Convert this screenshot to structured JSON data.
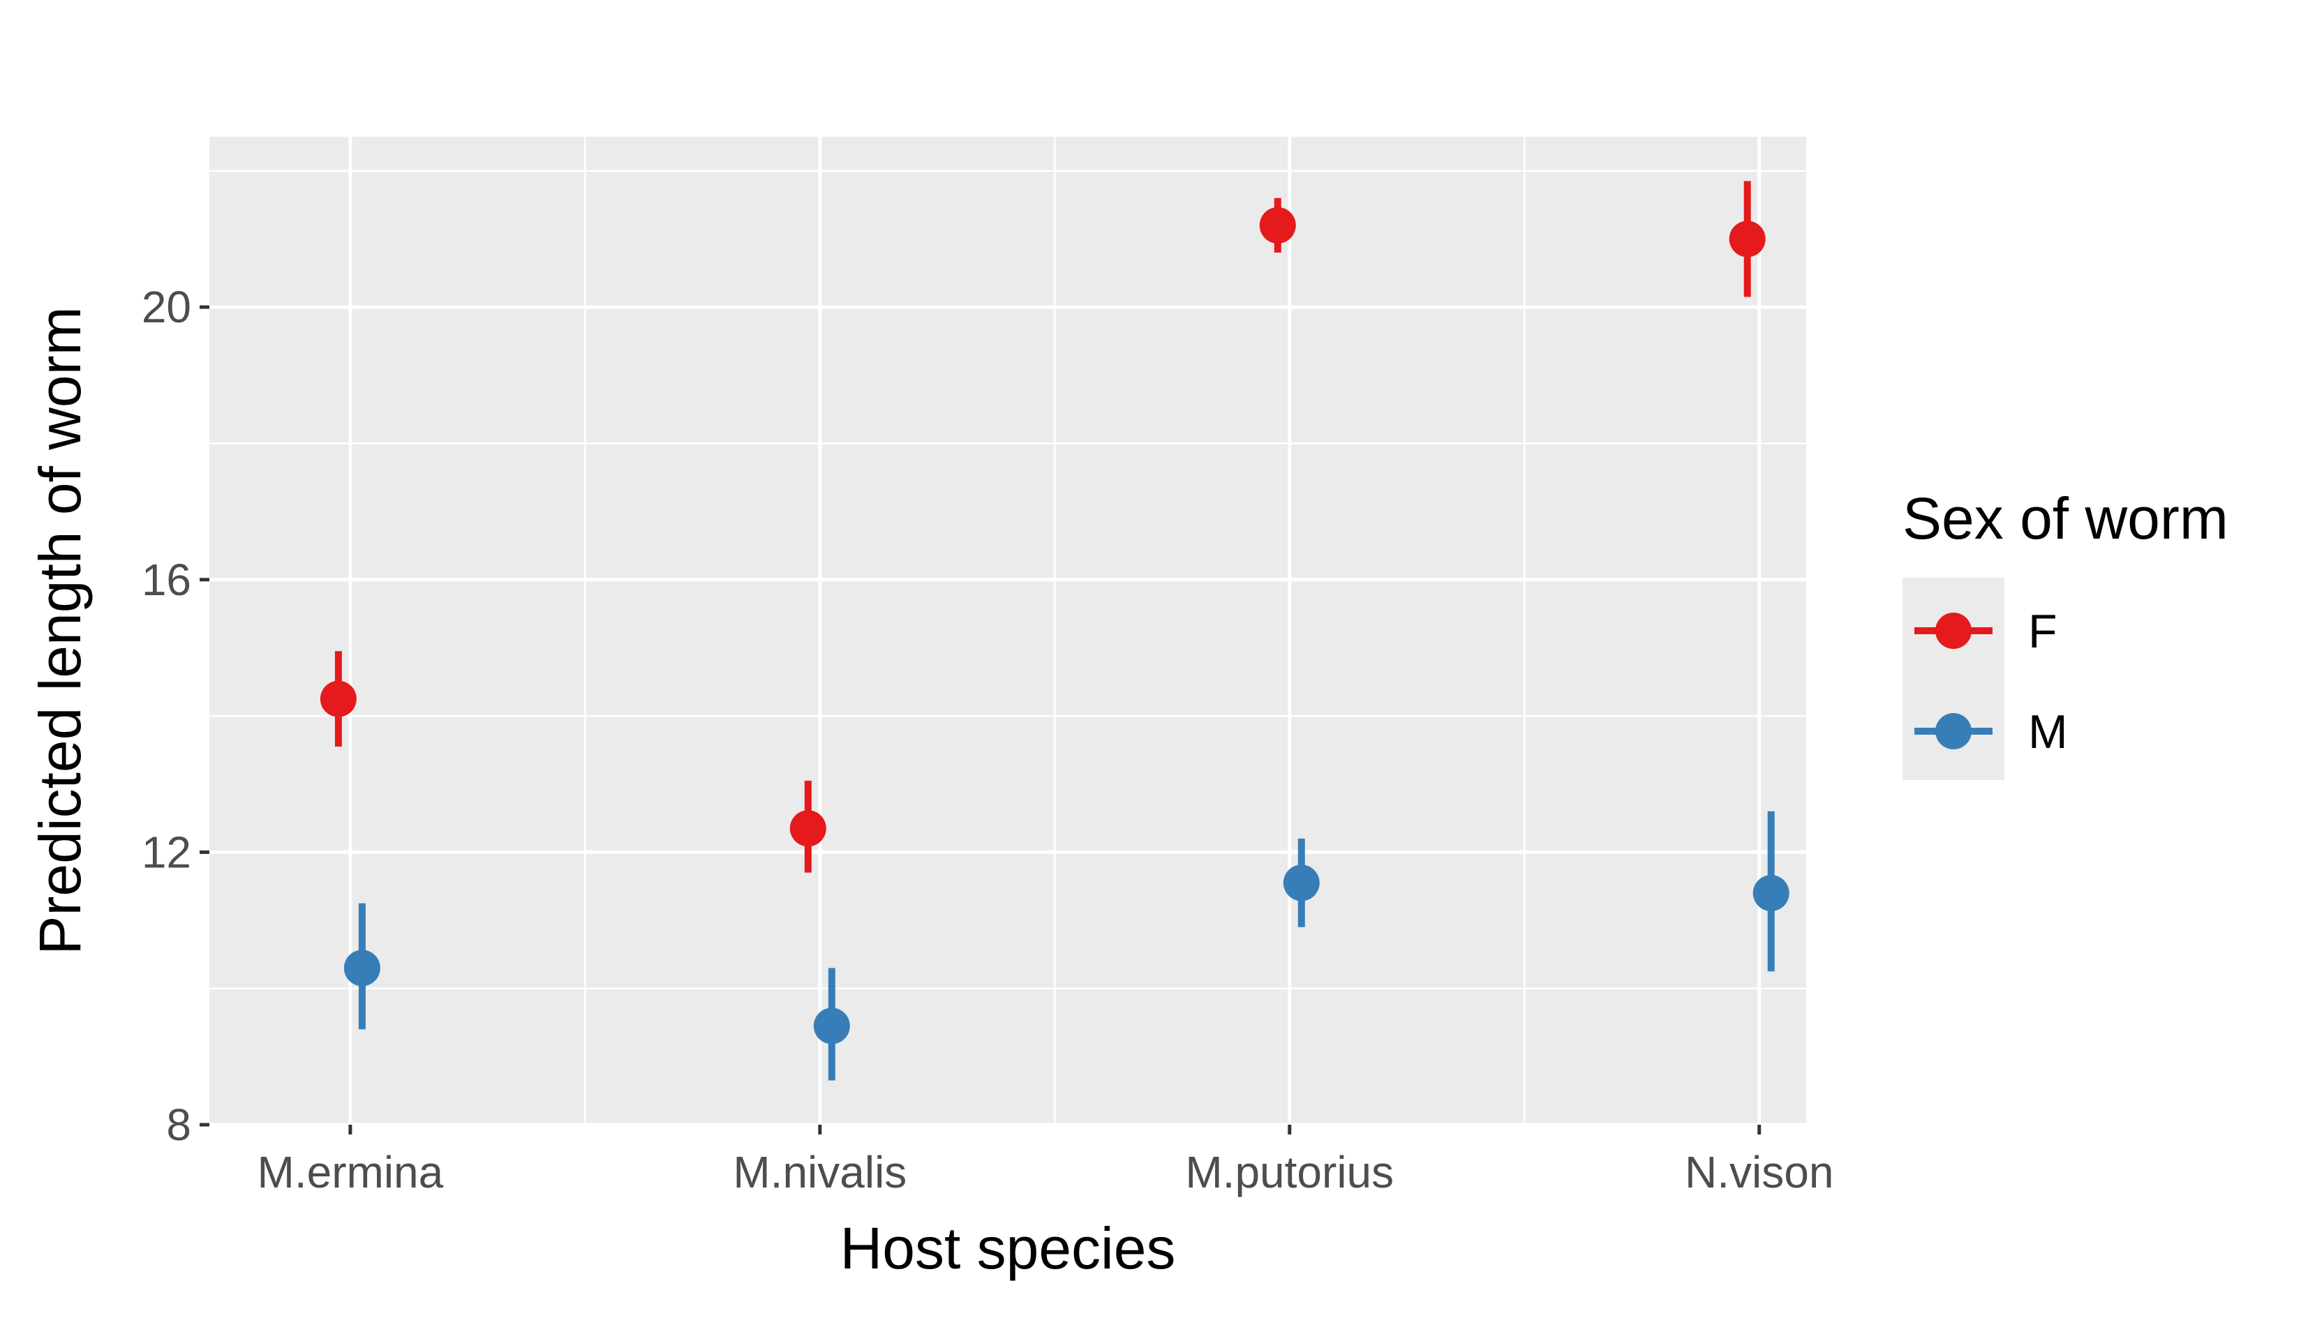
{
  "chart_data": {
    "type": "scatter",
    "subtype": "point-range",
    "xlabel": "Host species",
    "ylabel": "Predicted length of worm",
    "categories": [
      "M.ermina",
      "M.nivalis",
      "M.putorius",
      "N.vison"
    ],
    "ylim": [
      8,
      22.5
    ],
    "yticks": [
      8,
      12,
      16,
      20
    ],
    "grid": true,
    "legend": {
      "title": "Sex of worm",
      "placement": "right"
    },
    "series": [
      {
        "name": "F",
        "color": "#E41A1C",
        "values": [
          14.25,
          12.35,
          21.2,
          21.0
        ],
        "lower": [
          13.55,
          11.7,
          20.8,
          20.15
        ],
        "upper": [
          14.95,
          13.05,
          21.6,
          21.85
        ]
      },
      {
        "name": "M",
        "color": "#377EB8",
        "values": [
          10.3,
          9.45,
          11.55,
          11.4
        ],
        "lower": [
          9.4,
          8.65,
          10.9,
          10.25
        ],
        "upper": [
          11.25,
          10.3,
          12.2,
          12.6
        ]
      }
    ]
  }
}
